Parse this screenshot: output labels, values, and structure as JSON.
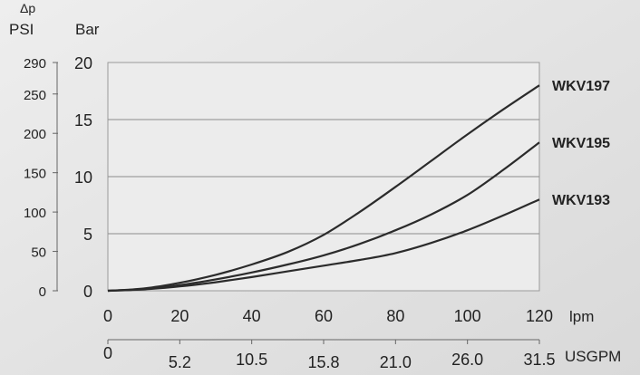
{
  "chart_data": {
    "type": "line",
    "delta_symbol": "Δp",
    "left_axis_unit": "PSI",
    "right_axis_unit": "Bar",
    "x_unit": "lpm",
    "x2_unit": "USGPM",
    "x_ticks": [
      0,
      20,
      40,
      60,
      80,
      100,
      120
    ],
    "x_tick_labels": [
      "0",
      "20",
      "40",
      "60",
      "80",
      "100",
      "120"
    ],
    "x2_tick_labels": [
      "0",
      "5.2",
      "10.5",
      "15.8",
      "21.0",
      "26.0",
      "31.5"
    ],
    "bar_ticks": [
      0,
      5,
      10,
      15,
      20
    ],
    "bar_tick_labels": [
      "0",
      "5",
      "10",
      "15",
      "20"
    ],
    "psi_ticks": [
      0,
      50,
      100,
      150,
      200,
      250,
      290
    ],
    "psi_tick_labels": [
      "0",
      "50",
      "100",
      "150",
      "200",
      "250",
      "290"
    ],
    "xlim": [
      0,
      120
    ],
    "ylim": [
      0,
      20
    ],
    "grid": true,
    "series": [
      {
        "name": "WKV197",
        "x": [
          0,
          10,
          20,
          30,
          40,
          50,
          60,
          70,
          80,
          90,
          100,
          110,
          120
        ],
        "y": [
          0,
          0.2,
          0.7,
          1.4,
          2.3,
          3.4,
          4.9,
          6.9,
          9.1,
          11.4,
          13.7,
          15.9,
          18.0
        ]
      },
      {
        "name": "WKV195",
        "x": [
          0,
          10,
          20,
          30,
          40,
          50,
          60,
          70,
          80,
          90,
          100,
          110,
          120
        ],
        "y": [
          0,
          0.15,
          0.5,
          1.0,
          1.6,
          2.3,
          3.1,
          4.1,
          5.3,
          6.7,
          8.4,
          10.6,
          13.0
        ]
      },
      {
        "name": "WKV193",
        "x": [
          0,
          10,
          20,
          30,
          40,
          50,
          60,
          70,
          80,
          90,
          100,
          110,
          120
        ],
        "y": [
          0,
          0.12,
          0.38,
          0.75,
          1.2,
          1.7,
          2.2,
          2.7,
          3.3,
          4.2,
          5.3,
          6.6,
          8.0
        ]
      }
    ]
  }
}
